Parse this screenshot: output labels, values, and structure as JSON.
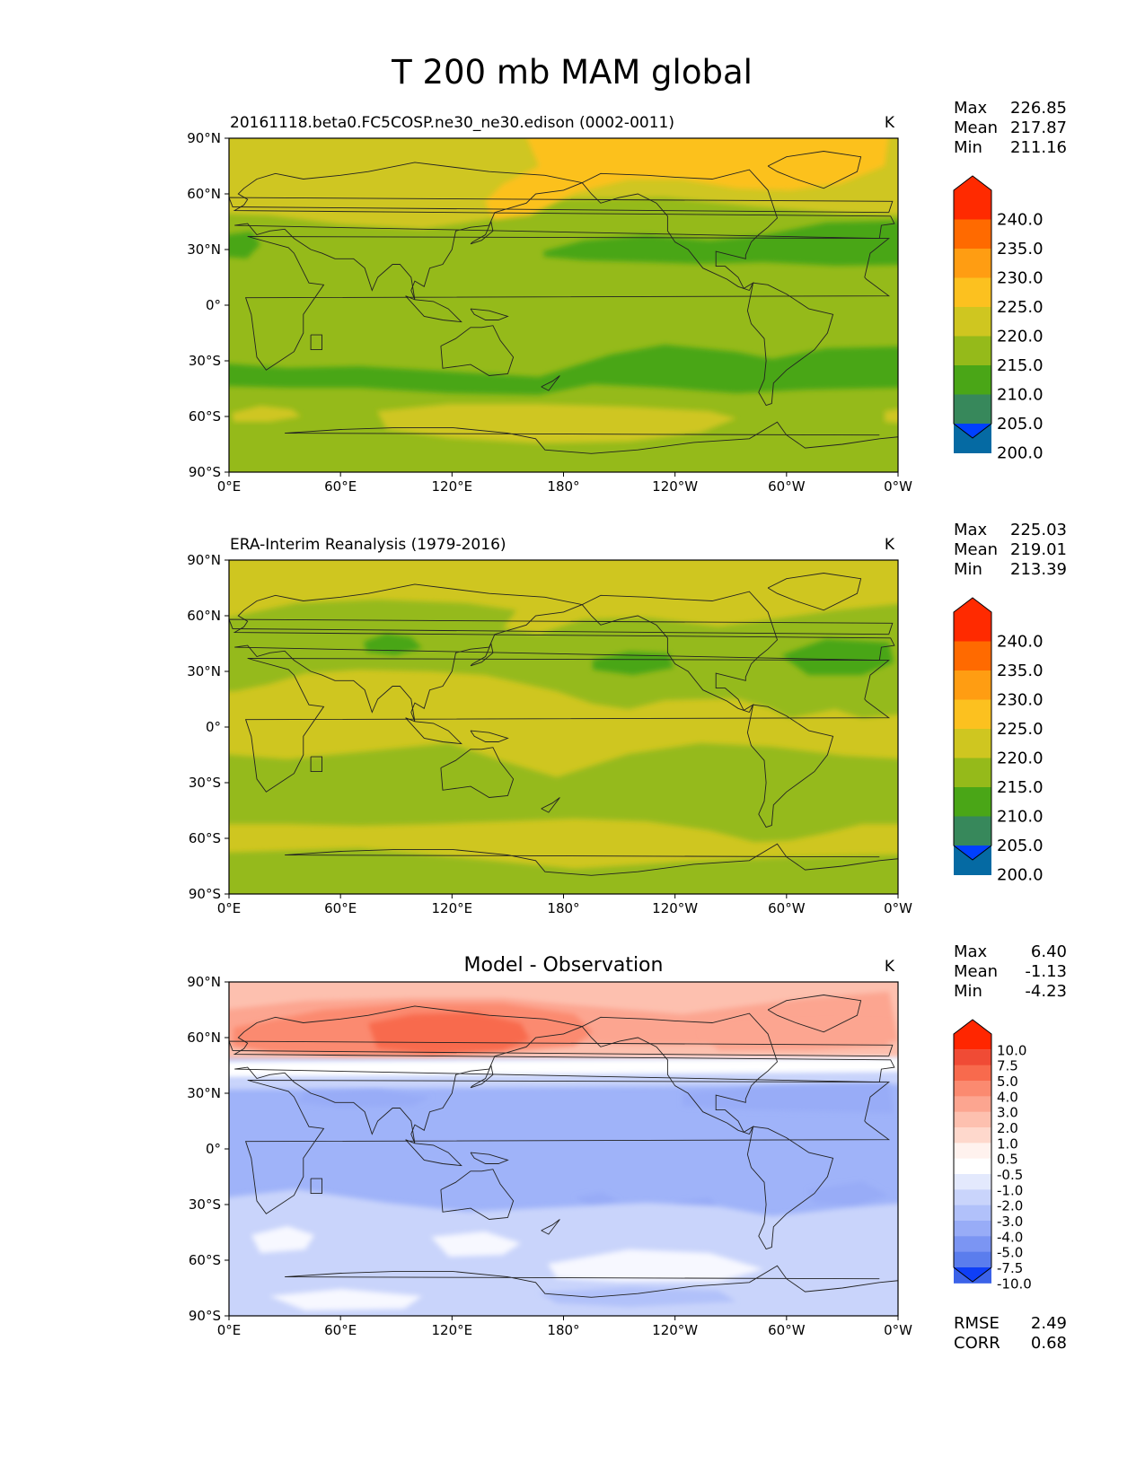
{
  "title": "T 200 mb MAM global",
  "x_ticks": [
    "0°E",
    "60°E",
    "120°E",
    "180°",
    "120°W",
    "60°W",
    "0°W"
  ],
  "y_ticks": [
    "90°N",
    "60°N",
    "30°N",
    "0°",
    "30°S",
    "60°S",
    "90°S"
  ],
  "chart_data": [
    {
      "type": "heatmap",
      "title": "20161118.beta0.FC5COSP.ne30_ne30.edison (0002-0011)",
      "units": "K",
      "xlim": [
        0,
        360
      ],
      "ylim": [
        -90,
        90
      ],
      "stats": [
        {
          "label": "Max",
          "value": "226.85"
        },
        {
          "label": "Mean",
          "value": "217.87"
        },
        {
          "label": "Min",
          "value": "211.16"
        }
      ],
      "colorbar": {
        "levels": [
          "240.0",
          "235.0",
          "230.0",
          "225.0",
          "220.0",
          "215.0",
          "210.0",
          "205.0",
          "200.0"
        ],
        "colors": [
          "#ff2a00",
          "#ff6a00",
          "#ff9d12",
          "#fcc11f",
          "#cfc620",
          "#95ba1a",
          "#4aa617",
          "#37885b",
          "#056aa3",
          "#0040ff"
        ]
      },
      "field": [
        {
          "range": "220-225 K",
          "color": "#cfc620"
        },
        {
          "range": "225-230 K",
          "color": "#fcc11f"
        },
        {
          "range": "215-220 K",
          "color": "#95ba1a"
        },
        {
          "range": "210-215 K",
          "color": "#4aa617"
        }
      ]
    },
    {
      "type": "heatmap",
      "title": "ERA-Interim Reanalysis (1979-2016)",
      "units": "K",
      "xlim": [
        0,
        360
      ],
      "ylim": [
        -90,
        90
      ],
      "stats": [
        {
          "label": "Max",
          "value": "225.03"
        },
        {
          "label": "Mean",
          "value": "219.01"
        },
        {
          "label": "Min",
          "value": "213.39"
        }
      ],
      "colorbar": {
        "levels": [
          "240.0",
          "235.0",
          "230.0",
          "225.0",
          "220.0",
          "215.0",
          "210.0",
          "205.0",
          "200.0"
        ],
        "colors": [
          "#ff2a00",
          "#ff6a00",
          "#ff9d12",
          "#fcc11f",
          "#cfc620",
          "#95ba1a",
          "#4aa617",
          "#37885b",
          "#056aa3",
          "#0040ff"
        ]
      }
    },
    {
      "type": "heatmap",
      "title": "Model - Observation",
      "units": "K",
      "xlim": [
        0,
        360
      ],
      "ylim": [
        -90,
        90
      ],
      "stats": [
        {
          "label": "Max",
          "value": "6.40"
        },
        {
          "label": "Mean",
          "value": "-1.13"
        },
        {
          "label": "Min",
          "value": "-4.23"
        }
      ],
      "extra_stats": [
        {
          "label": "RMSE",
          "value": "2.49"
        },
        {
          "label": "CORR",
          "value": "0.68"
        }
      ],
      "colorbar": {
        "levels": [
          "10.0",
          "7.5",
          "5.0",
          "4.0",
          "3.0",
          "2.0",
          "1.0",
          "0.5",
          "-0.5",
          "-1.0",
          "-2.0",
          "-3.0",
          "-4.0",
          "-5.0",
          "-7.5",
          "-10.0"
        ],
        "colors": [
          "#ff2600",
          "#f04b35",
          "#f86a4d",
          "#fb8a70",
          "#fca590",
          "#fdc0af",
          "#fed8cc",
          "#fff2ee",
          "#ffffff",
          "#e3e9fd",
          "#c9d4fb",
          "#b1c1fa",
          "#98acf7",
          "#7b95f3",
          "#5b7ded",
          "#3b62e8",
          "#0f3ff7"
        ]
      }
    }
  ]
}
